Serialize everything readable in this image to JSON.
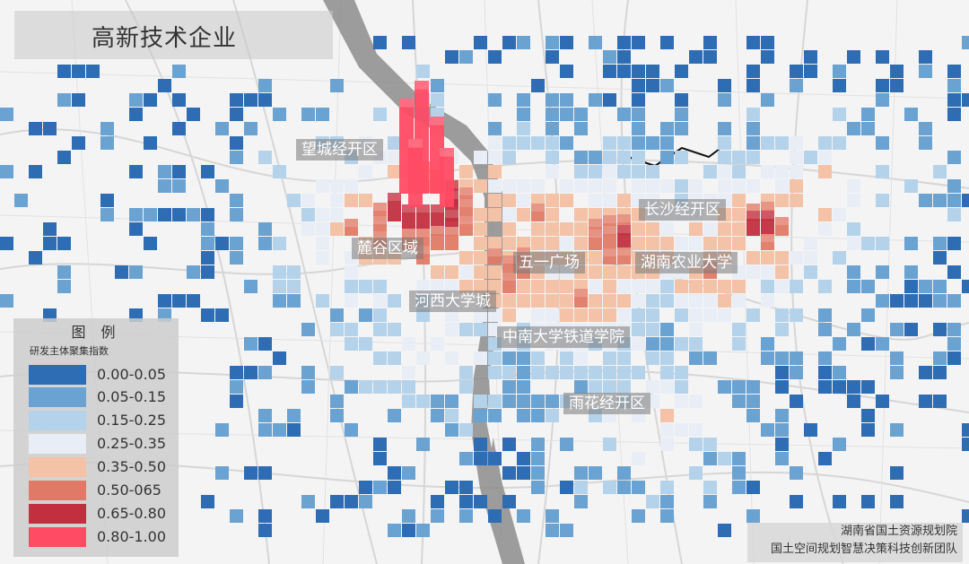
{
  "title": "高新技术企业",
  "place_labels": [
    "望城经开区",
    "麓谷区域",
    "长沙经开区",
    "五一广场",
    "湖南农业大学",
    "河西大学城",
    "中南大学铁道学院",
    "雨花经开区"
  ],
  "legend": {
    "title": "图 例",
    "subtitle": "研发主体聚集指数",
    "classes": [
      {
        "label": "0.00-0.05",
        "color": "#2e6db4"
      },
      {
        "label": "0.05-0.15",
        "color": "#6aa3d2"
      },
      {
        "label": "0.15-0.25",
        "color": "#b4d3eb"
      },
      {
        "label": "0.25-0.35",
        "color": "#e9eef6"
      },
      {
        "label": "0.35-0.50",
        "color": "#f4c2a6"
      },
      {
        "label": "0.50-065",
        "color": "#e07a66"
      },
      {
        "label": "0.65-0.80",
        "color": "#c23040"
      },
      {
        "label": "0.80-1.00",
        "color": "#ff4b63"
      }
    ]
  },
  "credit": {
    "line1": "湖南省国土资源规划院",
    "line2": "国土空间规划智慧决策科技创新团队"
  },
  "colors": {
    "background": "#f4f4f4",
    "river": "#8a8a8a",
    "roads": "#d8d8d8",
    "low": "#2e6db4",
    "high": "#ff4b63"
  }
}
